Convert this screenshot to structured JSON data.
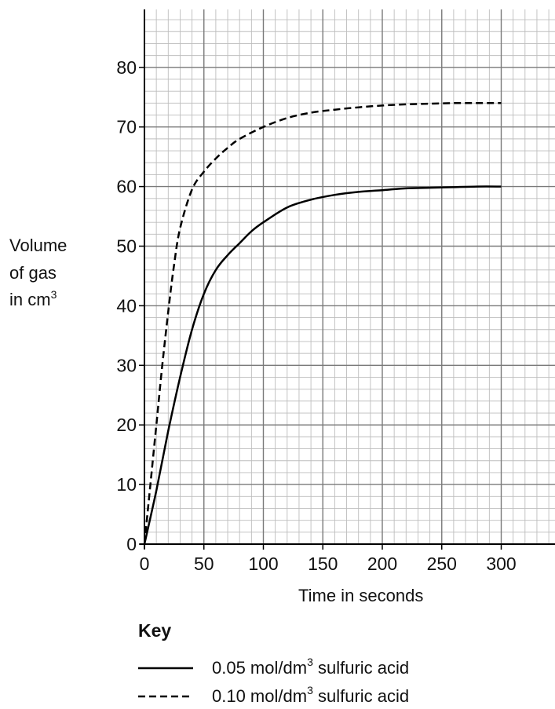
{
  "chart_data": {
    "type": "line",
    "xlabel": "Time in seconds",
    "ylabel_lines": [
      "Volume",
      "of gas",
      "in cm"
    ],
    "ylabel_sup": "3",
    "xlim": [
      0,
      340
    ],
    "ylim": [
      0,
      90
    ],
    "x_ticks": [
      0,
      50,
      100,
      150,
      200,
      250,
      300
    ],
    "y_ticks": [
      0,
      10,
      20,
      30,
      40,
      50,
      60,
      70,
      80
    ],
    "grid": true,
    "legend_title": "Key",
    "series": [
      {
        "name": "0.05 mol/dm3 sulfuric acid",
        "name_parts": [
          "0.05 mol/dm",
          "3",
          " sulfuric acid"
        ],
        "style": "solid",
        "x": [
          0,
          10,
          20,
          30,
          40,
          50,
          60,
          70,
          80,
          90,
          100,
          120,
          140,
          160,
          180,
          200,
          220,
          240,
          260,
          280,
          300
        ],
        "y": [
          0,
          9,
          19,
          28,
          36,
          42,
          46,
          48.5,
          50.5,
          52.5,
          54,
          56.5,
          57.8,
          58.6,
          59.1,
          59.4,
          59.7,
          59.8,
          59.9,
          60,
          60
        ]
      },
      {
        "name": "0.10 mol/dm3 sulfuric acid",
        "name_parts": [
          "0.10 mol/dm",
          "3",
          " sulfuric acid"
        ],
        "style": "dashed",
        "x": [
          0,
          5,
          10,
          15,
          20,
          25,
          30,
          40,
          50,
          60,
          70,
          80,
          100,
          120,
          140,
          160,
          180,
          200,
          220,
          240,
          260,
          280,
          300
        ],
        "y": [
          0,
          10,
          20,
          30,
          39,
          47,
          53,
          59.5,
          62.5,
          64.7,
          66.5,
          68,
          70,
          71.5,
          72.4,
          72.9,
          73.3,
          73.6,
          73.8,
          73.9,
          74,
          74,
          74
        ]
      }
    ]
  }
}
